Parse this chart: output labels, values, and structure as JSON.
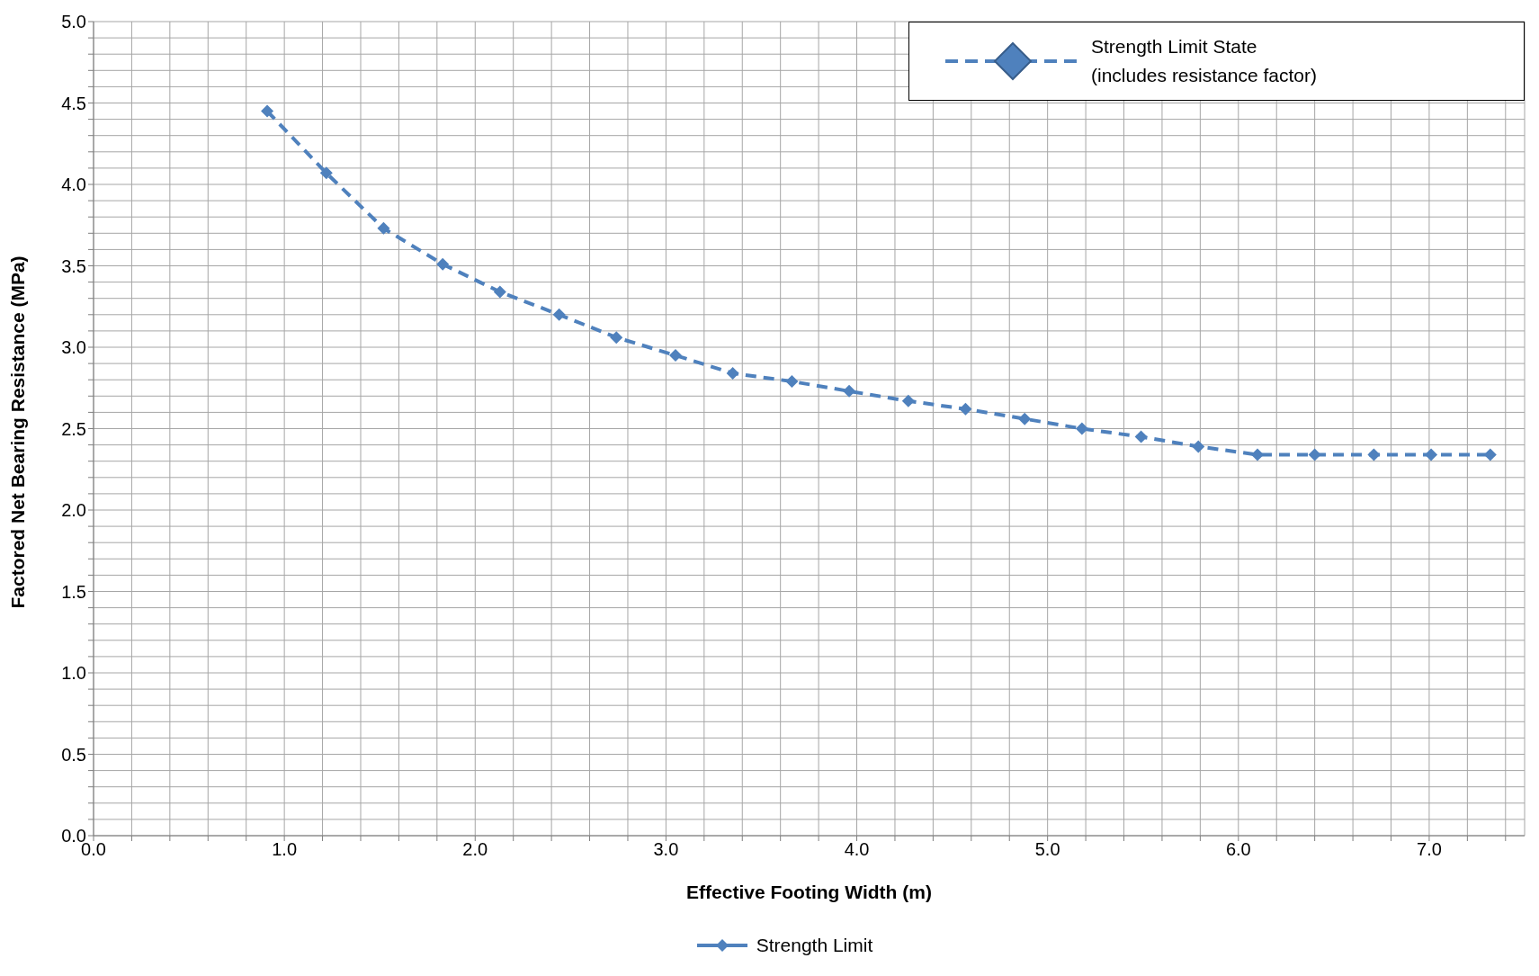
{
  "chart_data": {
    "type": "line",
    "xlabel": "Effective Footing Width (m)",
    "ylabel": "Factored Net Bearing Resistance (MPa)",
    "annotations": [
      "Strength Limit State\n(includes resistance factor)"
    ],
    "x": [
      0.91,
      1.22,
      1.52,
      1.83,
      2.13,
      2.44,
      2.74,
      3.05,
      3.35,
      3.66,
      3.96,
      4.27,
      4.57,
      4.88,
      5.18,
      5.49,
      5.79,
      6.1,
      6.4,
      6.71,
      7.01,
      7.32
    ],
    "series": [
      {
        "name": "Strength Limit",
        "color": "#4f81bd",
        "values": [
          4.45,
          4.07,
          3.73,
          3.51,
          3.34,
          3.2,
          3.06,
          2.95,
          2.84,
          2.79,
          2.73,
          2.67,
          2.62,
          2.56,
          2.5,
          2.45,
          2.39,
          2.34,
          2.34,
          2.34,
          2.34,
          2.34
        ]
      }
    ],
    "xlim": [
      0,
      7.5
    ],
    "xticks": [
      {
        "value": 0,
        "label": "0.0"
      },
      {
        "value": 0.2,
        "label": null
      },
      {
        "value": 0.4,
        "label": null
      },
      {
        "value": 0.6,
        "label": null
      },
      {
        "value": 0.8,
        "label": null
      },
      {
        "value": 1,
        "label": "1.0"
      },
      {
        "value": 1.2,
        "label": null
      },
      {
        "value": 1.4,
        "label": null
      },
      {
        "value": 1.6,
        "label": null
      },
      {
        "value": 1.8,
        "label": null
      },
      {
        "value": 2,
        "label": "2.0"
      },
      {
        "value": 2.2,
        "label": null
      },
      {
        "value": 2.4,
        "label": null
      },
      {
        "value": 2.6,
        "label": null
      },
      {
        "value": 2.8,
        "label": null
      },
      {
        "value": 3,
        "label": "3.0"
      },
      {
        "value": 3.2,
        "label": null
      },
      {
        "value": 3.4,
        "label": null
      },
      {
        "value": 3.6,
        "label": null
      },
      {
        "value": 3.8,
        "label": null
      },
      {
        "value": 4,
        "label": "4.0"
      },
      {
        "value": 4.2,
        "label": null
      },
      {
        "value": 4.4,
        "label": null
      },
      {
        "value": 4.6,
        "label": null
      },
      {
        "value": 4.8,
        "label": null
      },
      {
        "value": 5,
        "label": "5.0"
      },
      {
        "value": 5.2,
        "label": null
      },
      {
        "value": 5.4,
        "label": null
      },
      {
        "value": 5.6,
        "label": null
      },
      {
        "value": 5.8,
        "label": null
      },
      {
        "value": 6,
        "label": "6.0"
      },
      {
        "value": 6.2,
        "label": null
      },
      {
        "value": 6.4,
        "label": null
      },
      {
        "value": 6.6,
        "label": null
      },
      {
        "value": 6.8,
        "label": null
      },
      {
        "value": 7,
        "label": "7.0"
      },
      {
        "value": 7.2,
        "label": null
      },
      {
        "value": 7.4,
        "label": null
      }
    ],
    "ylim": [
      0,
      5
    ],
    "yticks": [
      {
        "value": 0,
        "label": "0.0"
      },
      {
        "value": 0.1,
        "label": null
      },
      {
        "value": 0.2,
        "label": null
      },
      {
        "value": 0.3,
        "label": null
      },
      {
        "value": 0.4,
        "label": null
      },
      {
        "value": 0.5,
        "label": "0.5"
      },
      {
        "value": 0.6,
        "label": null
      },
      {
        "value": 0.7,
        "label": null
      },
      {
        "value": 0.8,
        "label": null
      },
      {
        "value": 0.9,
        "label": null
      },
      {
        "value": 1,
        "label": "1.0"
      },
      {
        "value": 1.1,
        "label": null
      },
      {
        "value": 1.2,
        "label": null
      },
      {
        "value": 1.3,
        "label": null
      },
      {
        "value": 1.4,
        "label": null
      },
      {
        "value": 1.5,
        "label": "1.5"
      },
      {
        "value": 1.6,
        "label": null
      },
      {
        "value": 1.7,
        "label": null
      },
      {
        "value": 1.8,
        "label": null
      },
      {
        "value": 1.9,
        "label": null
      },
      {
        "value": 2,
        "label": "2.0"
      },
      {
        "value": 2.1,
        "label": null
      },
      {
        "value": 2.2,
        "label": null
      },
      {
        "value": 2.3,
        "label": null
      },
      {
        "value": 2.4,
        "label": null
      },
      {
        "value": 2.5,
        "label": "2.5"
      },
      {
        "value": 2.6,
        "label": null
      },
      {
        "value": 2.7,
        "label": null
      },
      {
        "value": 2.8,
        "label": null
      },
      {
        "value": 2.9,
        "label": null
      },
      {
        "value": 3,
        "label": "3.0"
      },
      {
        "value": 3.1,
        "label": null
      },
      {
        "value": 3.2,
        "label": null
      },
      {
        "value": 3.3,
        "label": null
      },
      {
        "value": 3.4,
        "label": null
      },
      {
        "value": 3.5,
        "label": "3.5"
      },
      {
        "value": 3.6,
        "label": null
      },
      {
        "value": 3.7,
        "label": null
      },
      {
        "value": 3.8,
        "label": null
      },
      {
        "value": 3.9,
        "label": null
      },
      {
        "value": 4,
        "label": "4.0"
      },
      {
        "value": 4.1,
        "label": null
      },
      {
        "value": 4.2,
        "label": null
      },
      {
        "value": 4.3,
        "label": null
      },
      {
        "value": 4.4,
        "label": null
      },
      {
        "value": 4.5,
        "label": "4.5"
      },
      {
        "value": 4.6,
        "label": null
      },
      {
        "value": 4.7,
        "label": null
      },
      {
        "value": 4.8,
        "label": null
      },
      {
        "value": 4.9,
        "label": null
      },
      {
        "value": 5,
        "label": "5.0"
      }
    ],
    "grid": true,
    "legend": "bottom",
    "marker": "diamond",
    "line_style": "dashed"
  }
}
